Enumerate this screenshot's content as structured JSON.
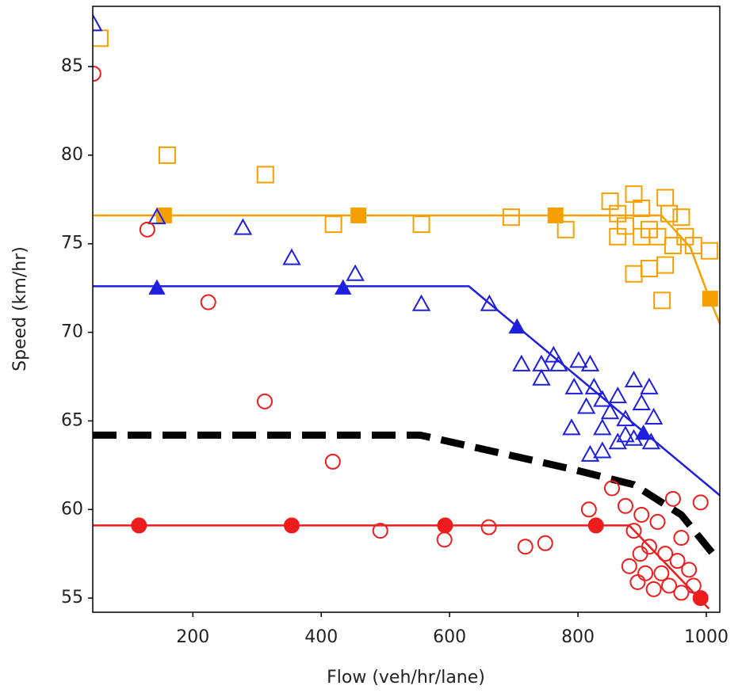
{
  "chart_data": {
    "type": "scatter",
    "x_label": "Flow (veh/hr/lane)",
    "y_label": "Speed (km/hr)",
    "xlim": [
      44,
      1021
    ],
    "ylim": [
      54.2,
      88.4
    ],
    "xticks": [
      200,
      400,
      600,
      800,
      1000
    ],
    "yticks": [
      55,
      60,
      65,
      70,
      75,
      80,
      85
    ],
    "series": [
      {
        "color": "#f5a000",
        "marker": "square",
        "filled": false,
        "line": false,
        "x": [
          55,
          160,
          313,
          419,
          556,
          696,
          781,
          850,
          862,
          874,
          887,
          899,
          911,
          924,
          936,
          942,
          948,
          961,
          887,
          911,
          936,
          931,
          980,
          1005,
          862,
          899,
          967
        ],
        "values": [
          86.6,
          80,
          78.9,
          76.1,
          76.1,
          76.5,
          75.8,
          77.4,
          76.7,
          76.0,
          77.8,
          77.0,
          75.8,
          75.4,
          77.6,
          76.7,
          74.9,
          76.5,
          73.3,
          73.6,
          73.8,
          71.8,
          74.9,
          74.6,
          75.4,
          75.4,
          75.4
        ]
      },
      {
        "color": "#f5a000",
        "marker": "none",
        "filled": false,
        "line": true,
        "dash": false,
        "x": [
          44,
          930,
          975,
          1005,
          1021
        ],
        "values": [
          76.6,
          76.6,
          74.8,
          71.9,
          70.5
        ]
      },
      {
        "color": "#f5a000",
        "marker": "square",
        "filled": true,
        "line": false,
        "x": [
          155,
          458,
          765,
          1006
        ],
        "values": [
          76.6,
          76.6,
          76.6,
          71.9
        ]
      },
      {
        "color": "#1f1fe0",
        "marker": "triangle",
        "filled": false,
        "line": false,
        "x": [
          45,
          144,
          278,
          354,
          453,
          556,
          662,
          712,
          743,
          743,
          770,
          762,
          801,
          794,
          819,
          813,
          790,
          825,
          838,
          850,
          862,
          874,
          887,
          899,
          911,
          918,
          819,
          838,
          862,
          887,
          914,
          838,
          874
        ],
        "values": [
          87.4,
          76.5,
          75.9,
          74.2,
          73.3,
          71.6,
          71.6,
          68.2,
          67.4,
          68.2,
          68.2,
          68.7,
          68.4,
          66.9,
          68.2,
          65.8,
          64.6,
          66.9,
          66.2,
          65.5,
          66.4,
          65.1,
          67.3,
          66.0,
          66.9,
          65.2,
          63.1,
          63.3,
          63.8,
          64.0,
          63.8,
          64.6,
          64.2
        ]
      },
      {
        "color": "#1f1fe0",
        "marker": "none",
        "filled": false,
        "line": true,
        "dash": false,
        "x": [
          44,
          630,
          1021
        ],
        "values": [
          72.6,
          72.6,
          60.8
        ]
      },
      {
        "color": "#1f1fe0",
        "marker": "triangle",
        "filled": true,
        "line": false,
        "x": [
          144,
          434,
          705,
          902
        ],
        "values": [
          72.5,
          72.5,
          70.3,
          64.3
        ]
      },
      {
        "color": "#000000",
        "marker": "none",
        "filled": false,
        "line": true,
        "dash": true,
        "x": [
          44,
          554,
          788,
          887,
          961,
          1017
        ],
        "values": [
          64.2,
          64.2,
          62.3,
          61.4,
          59.7,
          57.2
        ]
      },
      {
        "color": "#ee1c1c",
        "marker": "circle",
        "filled": false,
        "line": false,
        "x": [
          45,
          129,
          224,
          312,
          418,
          492,
          592,
          661,
          718,
          749,
          817,
          853,
          874,
          887,
          899,
          911,
          924,
          936,
          948,
          961,
          973,
          991,
          880,
          893,
          918,
          942,
          961,
          980,
          905,
          930,
          955,
          897
        ],
        "values": [
          84.6,
          75.8,
          71.7,
          66.1,
          62.7,
          58.8,
          58.3,
          59.0,
          57.9,
          58.1,
          60.0,
          61.2,
          60.2,
          58.8,
          59.7,
          57.9,
          59.3,
          57.5,
          60.6,
          58.4,
          56.6,
          60.4,
          56.8,
          55.9,
          55.5,
          55.7,
          55.3,
          55.7,
          56.4,
          56.4,
          57.1,
          57.5
        ]
      },
      {
        "color": "#ee1c1c",
        "marker": "none",
        "filled": false,
        "line": true,
        "dash": false,
        "x": [
          44,
          880,
          1004
        ],
        "values": [
          59.1,
          59.1,
          54.4
        ]
      },
      {
        "color": "#ee1c1c",
        "marker": "circle",
        "filled": true,
        "line": false,
        "x": [
          116,
          354,
          593,
          828,
          991
        ],
        "values": [
          59.1,
          59.1,
          59.1,
          59.1,
          55.0
        ]
      }
    ]
  }
}
